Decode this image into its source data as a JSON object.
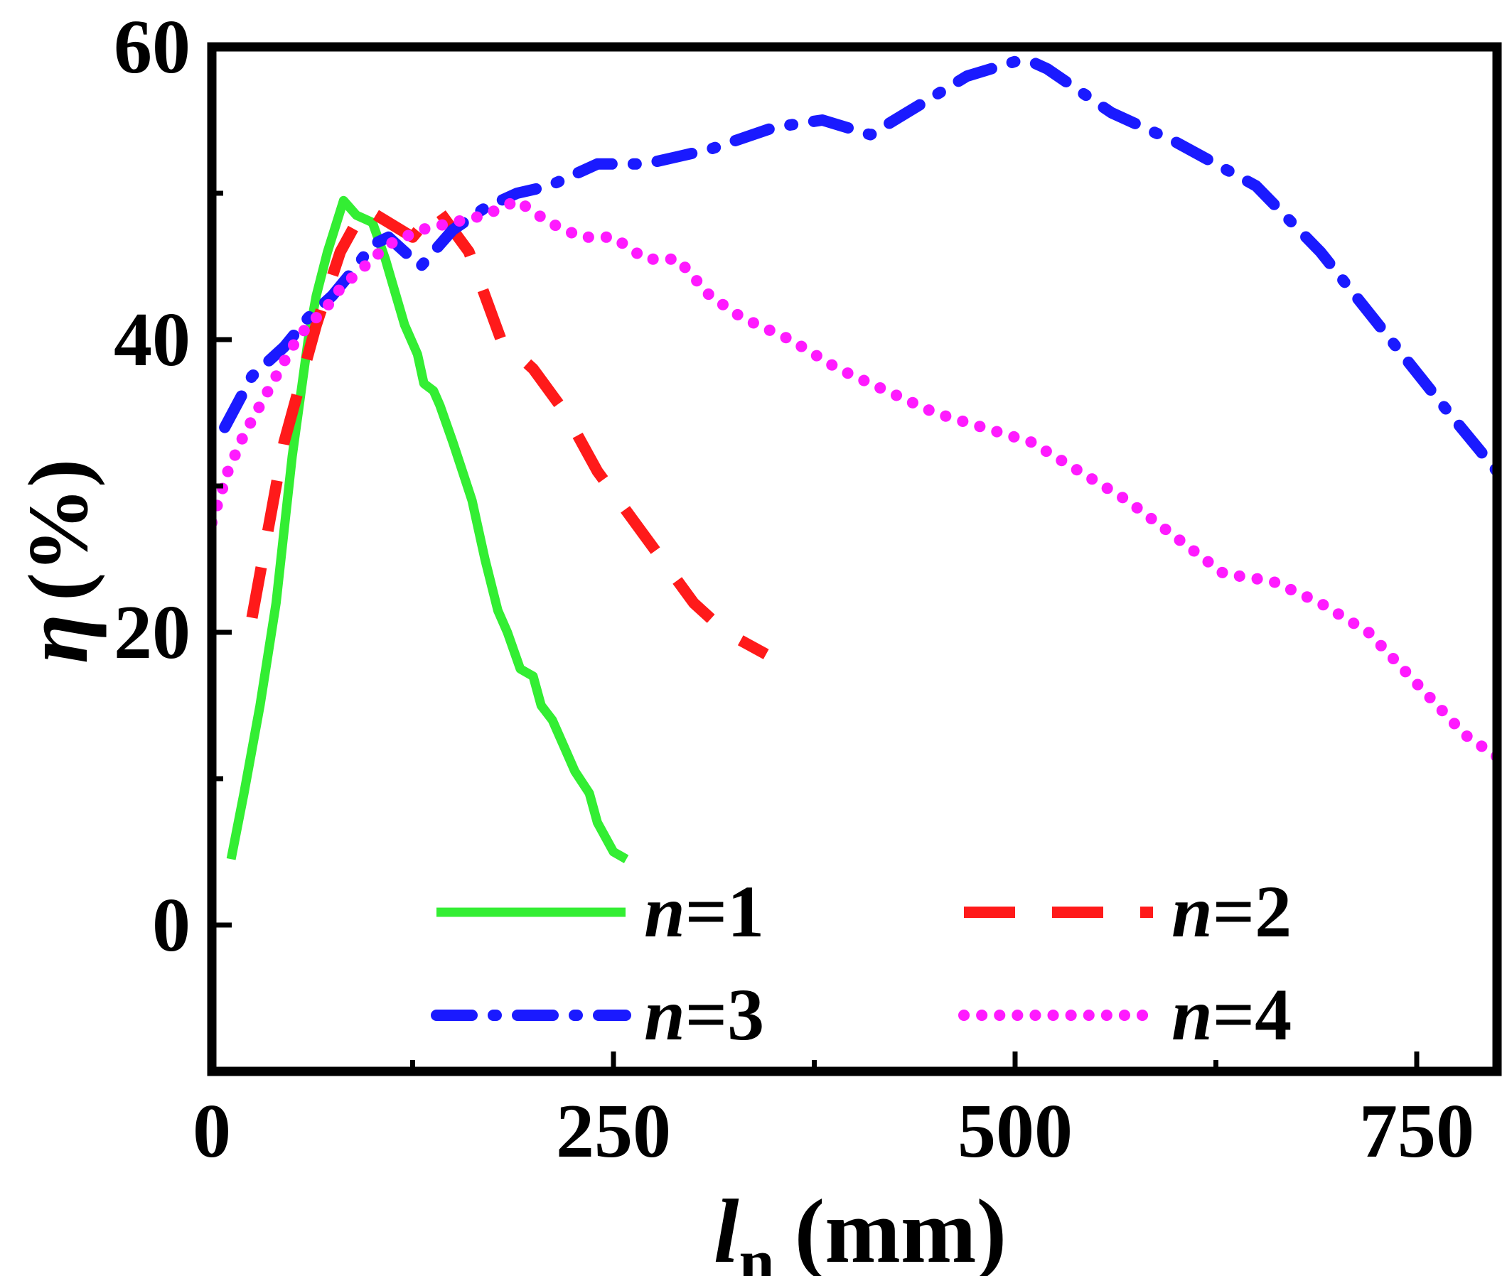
{
  "chart_data": {
    "type": "line",
    "title": "",
    "xlabel": {
      "main": "l",
      "sub": "n",
      "unit": "(mm)"
    },
    "ylabel": {
      "main": "η",
      "unit": "(%)"
    },
    "xlim": [
      0,
      800
    ],
    "ylim": [
      -10,
      60
    ],
    "x_ticks": [
      0,
      250,
      500,
      750
    ],
    "x_tick_labels": [
      "0",
      "250",
      "500",
      "750"
    ],
    "x_minor_ticks": [
      125,
      375,
      625
    ],
    "y_ticks": [
      0,
      20,
      40,
      60
    ],
    "y_tick_labels": [
      "0",
      "20",
      "40",
      "60"
    ],
    "y_minor_ticks": [
      10,
      30,
      50
    ],
    "grid": false,
    "legend_position": "bottom, two columns",
    "series": [
      {
        "name": "n=1",
        "var": "n",
        "eq": "=1",
        "color": "#33ee33",
        "dash": "solid",
        "x": [
          12,
          20,
          30,
          40,
          50,
          60,
          65,
          72,
          82,
          90,
          100,
          108,
          112,
          120,
          128,
          132,
          138,
          142,
          150,
          156,
          162,
          170,
          178,
          184,
          192,
          200,
          205,
          212,
          220,
          226,
          235,
          240,
          250,
          258
        ],
        "y": [
          4.5,
          9,
          15,
          22,
          32,
          40,
          43,
          46,
          49.5,
          48.5,
          48,
          45.5,
          44,
          41,
          39,
          37,
          36.5,
          35.5,
          33,
          31,
          29,
          25,
          21.5,
          20,
          17.5,
          17,
          15,
          14,
          12,
          10.5,
          9,
          7,
          5,
          4.5
        ]
      },
      {
        "name": "n=2",
        "var": "n",
        "eq": "=2",
        "color": "#ff1a1a",
        "dash": "long-dash",
        "x": [
          25,
          35,
          45,
          55,
          65,
          80,
          95,
          110,
          125,
          140,
          160,
          180,
          200,
          220,
          240,
          260,
          280,
          300,
          320,
          345
        ],
        "y": [
          21,
          27,
          33,
          37,
          41,
          46,
          49,
          48,
          47,
          49,
          46,
          40,
          38,
          35,
          31,
          28,
          25,
          22,
          20,
          18.5
        ]
      },
      {
        "name": "n=3",
        "var": "n",
        "eq": "=3",
        "color": "#1a1aff",
        "dash": "dash-dot",
        "x": [
          8,
          25,
          45,
          60,
          75,
          90,
          100,
          110,
          120,
          130,
          150,
          170,
          190,
          210,
          240,
          270,
          290,
          310,
          350,
          380,
          410,
          440,
          470,
          500,
          510,
          520,
          560,
          600,
          650,
          690,
          730,
          770,
          800
        ],
        "y": [
          34,
          37.5,
          39.5,
          41.5,
          43,
          45,
          46.5,
          47,
          46,
          45,
          47.5,
          49,
          50,
          50.5,
          52,
          52,
          52.5,
          53,
          54.5,
          55,
          54,
          56,
          58,
          59,
          59,
          58.5,
          55.5,
          53.5,
          50.5,
          46,
          40.5,
          35,
          31
        ]
      },
      {
        "name": "n=4",
        "var": "n",
        "eq": "=4",
        "color": "#ff1aff",
        "dash": "dotted",
        "x": [
          0,
          10,
          20,
          30,
          40,
          50,
          60,
          70,
          80,
          95,
          110,
          130,
          150,
          170,
          190,
          210,
          230,
          250,
          270,
          290,
          310,
          330,
          360,
          390,
          420,
          450,
          480,
          510,
          540,
          570,
          600,
          630,
          660,
          690,
          720,
          750,
          780,
          800
        ],
        "y": [
          27.5,
          31,
          33.5,
          35.5,
          37.5,
          39.5,
          41,
          42,
          43.5,
          45,
          46.5,
          47.5,
          48,
          48.5,
          49.5,
          48,
          47,
          47,
          45.5,
          45.5,
          43,
          41.5,
          40,
          38,
          36.5,
          35,
          34,
          33,
          31,
          29,
          26.5,
          24,
          23.5,
          22,
          20,
          16.5,
          13,
          11.5
        ]
      }
    ]
  }
}
